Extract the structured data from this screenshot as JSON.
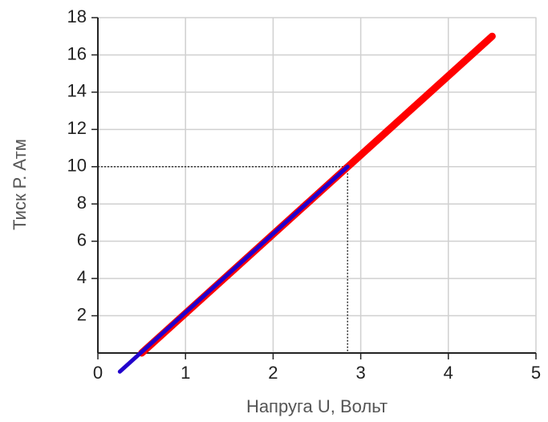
{
  "chart_data": {
    "type": "line",
    "xlabel": "Напруга U, Вольт",
    "ylabel": "Тиск Р. Атм",
    "xlim": [
      0,
      5
    ],
    "xticks": [
      0,
      1,
      2,
      3,
      4,
      5
    ],
    "ylim": [
      0,
      18
    ],
    "yticks": [
      2,
      4,
      6,
      8,
      10,
      12,
      14,
      16,
      18
    ],
    "grid": true,
    "series": [
      {
        "color": "#ff0000",
        "x": [
          0.5,
          4.5
        ],
        "values": [
          0,
          17
        ]
      },
      {
        "color": "#2200cc",
        "x": [
          0.25,
          2.85
        ],
        "values": [
          -1,
          10
        ]
      }
    ],
    "reference": {
      "x": 2.85,
      "y": 10
    }
  }
}
